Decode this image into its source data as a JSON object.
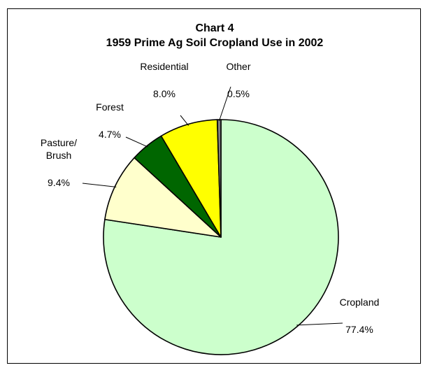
{
  "chart_data": {
    "type": "pie",
    "title_line1": "Chart 4",
    "title_line2": "1959  Prime Ag Soil Cropland Use in 2002",
    "slices": [
      {
        "name": "Cropland",
        "value": 77.4,
        "value_label": "77.4%",
        "color": "#ccffcc"
      },
      {
        "name": "Pasture/ Brush",
        "name_lines": [
          "Pasture/",
          "Brush"
        ],
        "value": 9.4,
        "value_label": "9.4%",
        "color": "#ffffcc"
      },
      {
        "name": "Forest",
        "value": 4.7,
        "value_label": "4.7%",
        "color": "#006600"
      },
      {
        "name": "Residential",
        "value": 8.0,
        "value_label": "8.0%",
        "color": "#ffff00"
      },
      {
        "name": "Other",
        "value": 0.5,
        "value_label": "0.5%",
        "color": "#808080"
      }
    ],
    "start_angle_deg": 0,
    "direction": "clockwise",
    "legend": "none"
  }
}
